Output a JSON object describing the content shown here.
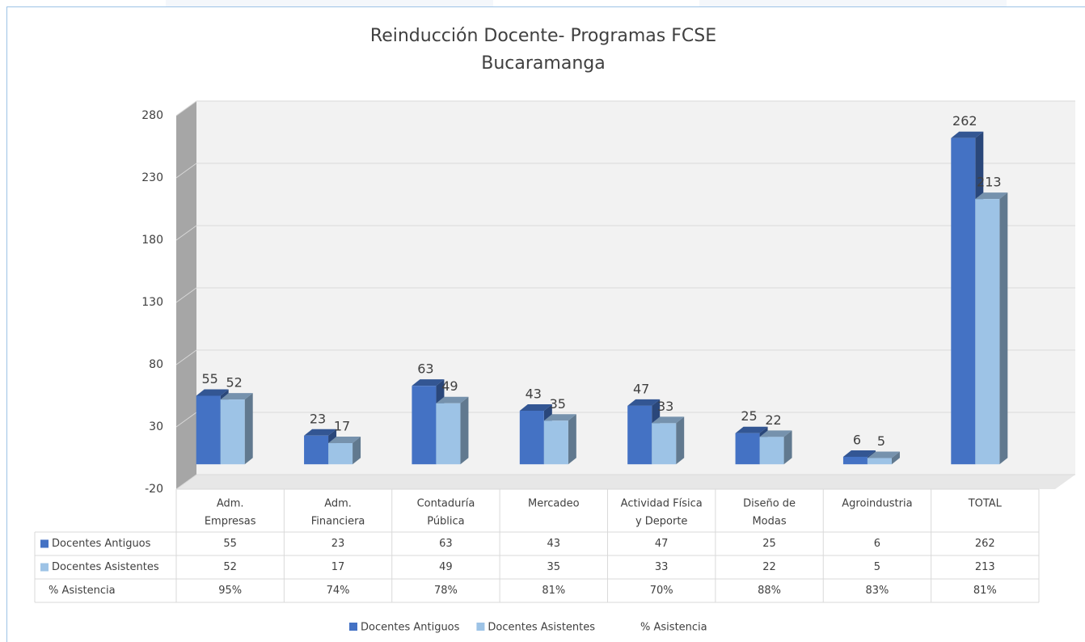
{
  "chart_data": {
    "type": "bar3d",
    "title": "Reinducción Docente- Programas FCSE",
    "subtitle": "Bucaramanga",
    "categories": [
      [
        "Adm.",
        "Empresas"
      ],
      [
        "Adm.",
        "Financiera"
      ],
      [
        "Contaduría",
        "Pública"
      ],
      [
        "Mercadeo"
      ],
      [
        "Actividad Física",
        "y Deporte"
      ],
      [
        "Diseño de",
        "Modas"
      ],
      [
        "Agroindustria"
      ],
      [
        "TOTAL"
      ]
    ],
    "series": [
      {
        "name": "Docentes Antiguos",
        "color": "#4472c4",
        "values": [
          55,
          23,
          63,
          43,
          47,
          25,
          6,
          262
        ]
      },
      {
        "name": "Docentes Asistentes",
        "color": "#9dc3e6",
        "values": [
          52,
          17,
          49,
          35,
          33,
          22,
          5,
          213
        ]
      },
      {
        "name": "% Asistencia",
        "values": [
          95,
          74,
          78,
          81,
          70,
          88,
          83,
          81
        ],
        "value_labels": [
          "95%",
          "74%",
          "78%",
          "81%",
          "70%",
          "88%",
          "83%",
          "81%"
        ]
      }
    ],
    "ylim": [
      -20,
      280
    ],
    "yticks": [
      -20,
      30,
      80,
      130,
      180,
      230,
      280
    ],
    "grid": true
  }
}
